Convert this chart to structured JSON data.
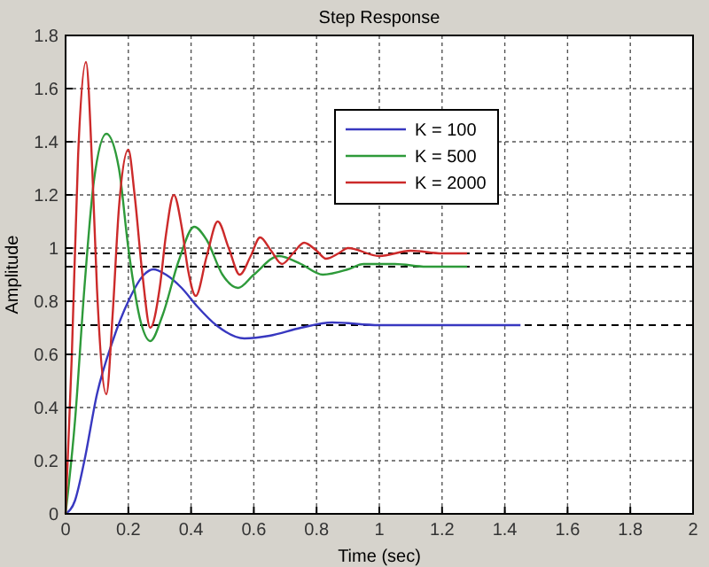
{
  "chart_data": {
    "type": "line",
    "title": "Step Response",
    "xlabel": "Time (sec)",
    "ylabel": "Amplitude",
    "xlim": [
      0,
      2
    ],
    "xticks": [
      0,
      0.2,
      0.4,
      0.6,
      0.8,
      1,
      1.2,
      1.4,
      1.6,
      1.8,
      2
    ],
    "ylim": [
      0,
      1.8
    ],
    "yticks": [
      0,
      0.2,
      0.4,
      0.6,
      0.8,
      1,
      1.2,
      1.4,
      1.6,
      1.8
    ],
    "grid": true,
    "legend": "top right",
    "line_style": "solid",
    "series": [
      {
        "name": "K = 100",
        "color": "#3838c0",
        "x": [
          0,
          0.03,
          0.06,
          0.1,
          0.15,
          0.2,
          0.25,
          0.28,
          0.32,
          0.37,
          0.42,
          0.48,
          0.57,
          0.65,
          0.75,
          0.85,
          1,
          1.2,
          1.45
        ],
        "values": [
          0,
          0.05,
          0.2,
          0.45,
          0.65,
          0.8,
          0.9,
          0.92,
          0.9,
          0.85,
          0.78,
          0.71,
          0.66,
          0.67,
          0.7,
          0.72,
          0.71,
          0.71,
          0.71
        ]
      },
      {
        "name": "K = 500",
        "color": "#2e9a3a",
        "x": [
          0,
          0.03,
          0.06,
          0.09,
          0.13,
          0.17,
          0.2,
          0.24,
          0.27,
          0.31,
          0.36,
          0.41,
          0.45,
          0.5,
          0.55,
          0.6,
          0.68,
          0.75,
          0.82,
          0.9,
          0.95,
          1.05,
          1.15,
          1.28
        ],
        "values": [
          0,
          0.35,
          0.85,
          1.25,
          1.43,
          1.3,
          1,
          0.72,
          0.65,
          0.75,
          0.95,
          1.08,
          1.03,
          0.9,
          0.85,
          0.9,
          0.97,
          0.94,
          0.9,
          0.92,
          0.94,
          0.94,
          0.93,
          0.93
        ]
      },
      {
        "name": "K = 2000",
        "color": "#cc2a2a",
        "x": [
          0,
          0.02,
          0.04,
          0.065,
          0.085,
          0.1,
          0.13,
          0.15,
          0.17,
          0.2,
          0.22,
          0.245,
          0.27,
          0.3,
          0.32,
          0.345,
          0.37,
          0.39,
          0.415,
          0.45,
          0.485,
          0.52,
          0.555,
          0.59,
          0.62,
          0.655,
          0.69,
          0.725,
          0.76,
          0.8,
          0.83,
          0.87,
          0.9,
          1,
          1.1,
          1.2,
          1.28
        ],
        "values": [
          0,
          0.6,
          1.35,
          1.7,
          1.3,
          0.85,
          0.45,
          0.75,
          1.15,
          1.37,
          1.2,
          0.9,
          0.7,
          0.85,
          1.05,
          1.2,
          1.08,
          0.92,
          0.82,
          0.97,
          1.1,
          1,
          0.9,
          0.97,
          1.04,
          0.99,
          0.94,
          0.98,
          1.02,
          0.99,
          0.96,
          0.98,
          1,
          0.97,
          0.99,
          0.98,
          0.98
        ]
      }
    ],
    "ref_lines": [
      {
        "axis": "y",
        "value": 0.71,
        "color": "#000000",
        "line_style": "dashed"
      },
      {
        "axis": "y",
        "value": 0.93,
        "color": "#000000",
        "line_style": "dashed"
      },
      {
        "axis": "y",
        "value": 0.98,
        "color": "#000000",
        "line_style": "dashed"
      }
    ]
  }
}
